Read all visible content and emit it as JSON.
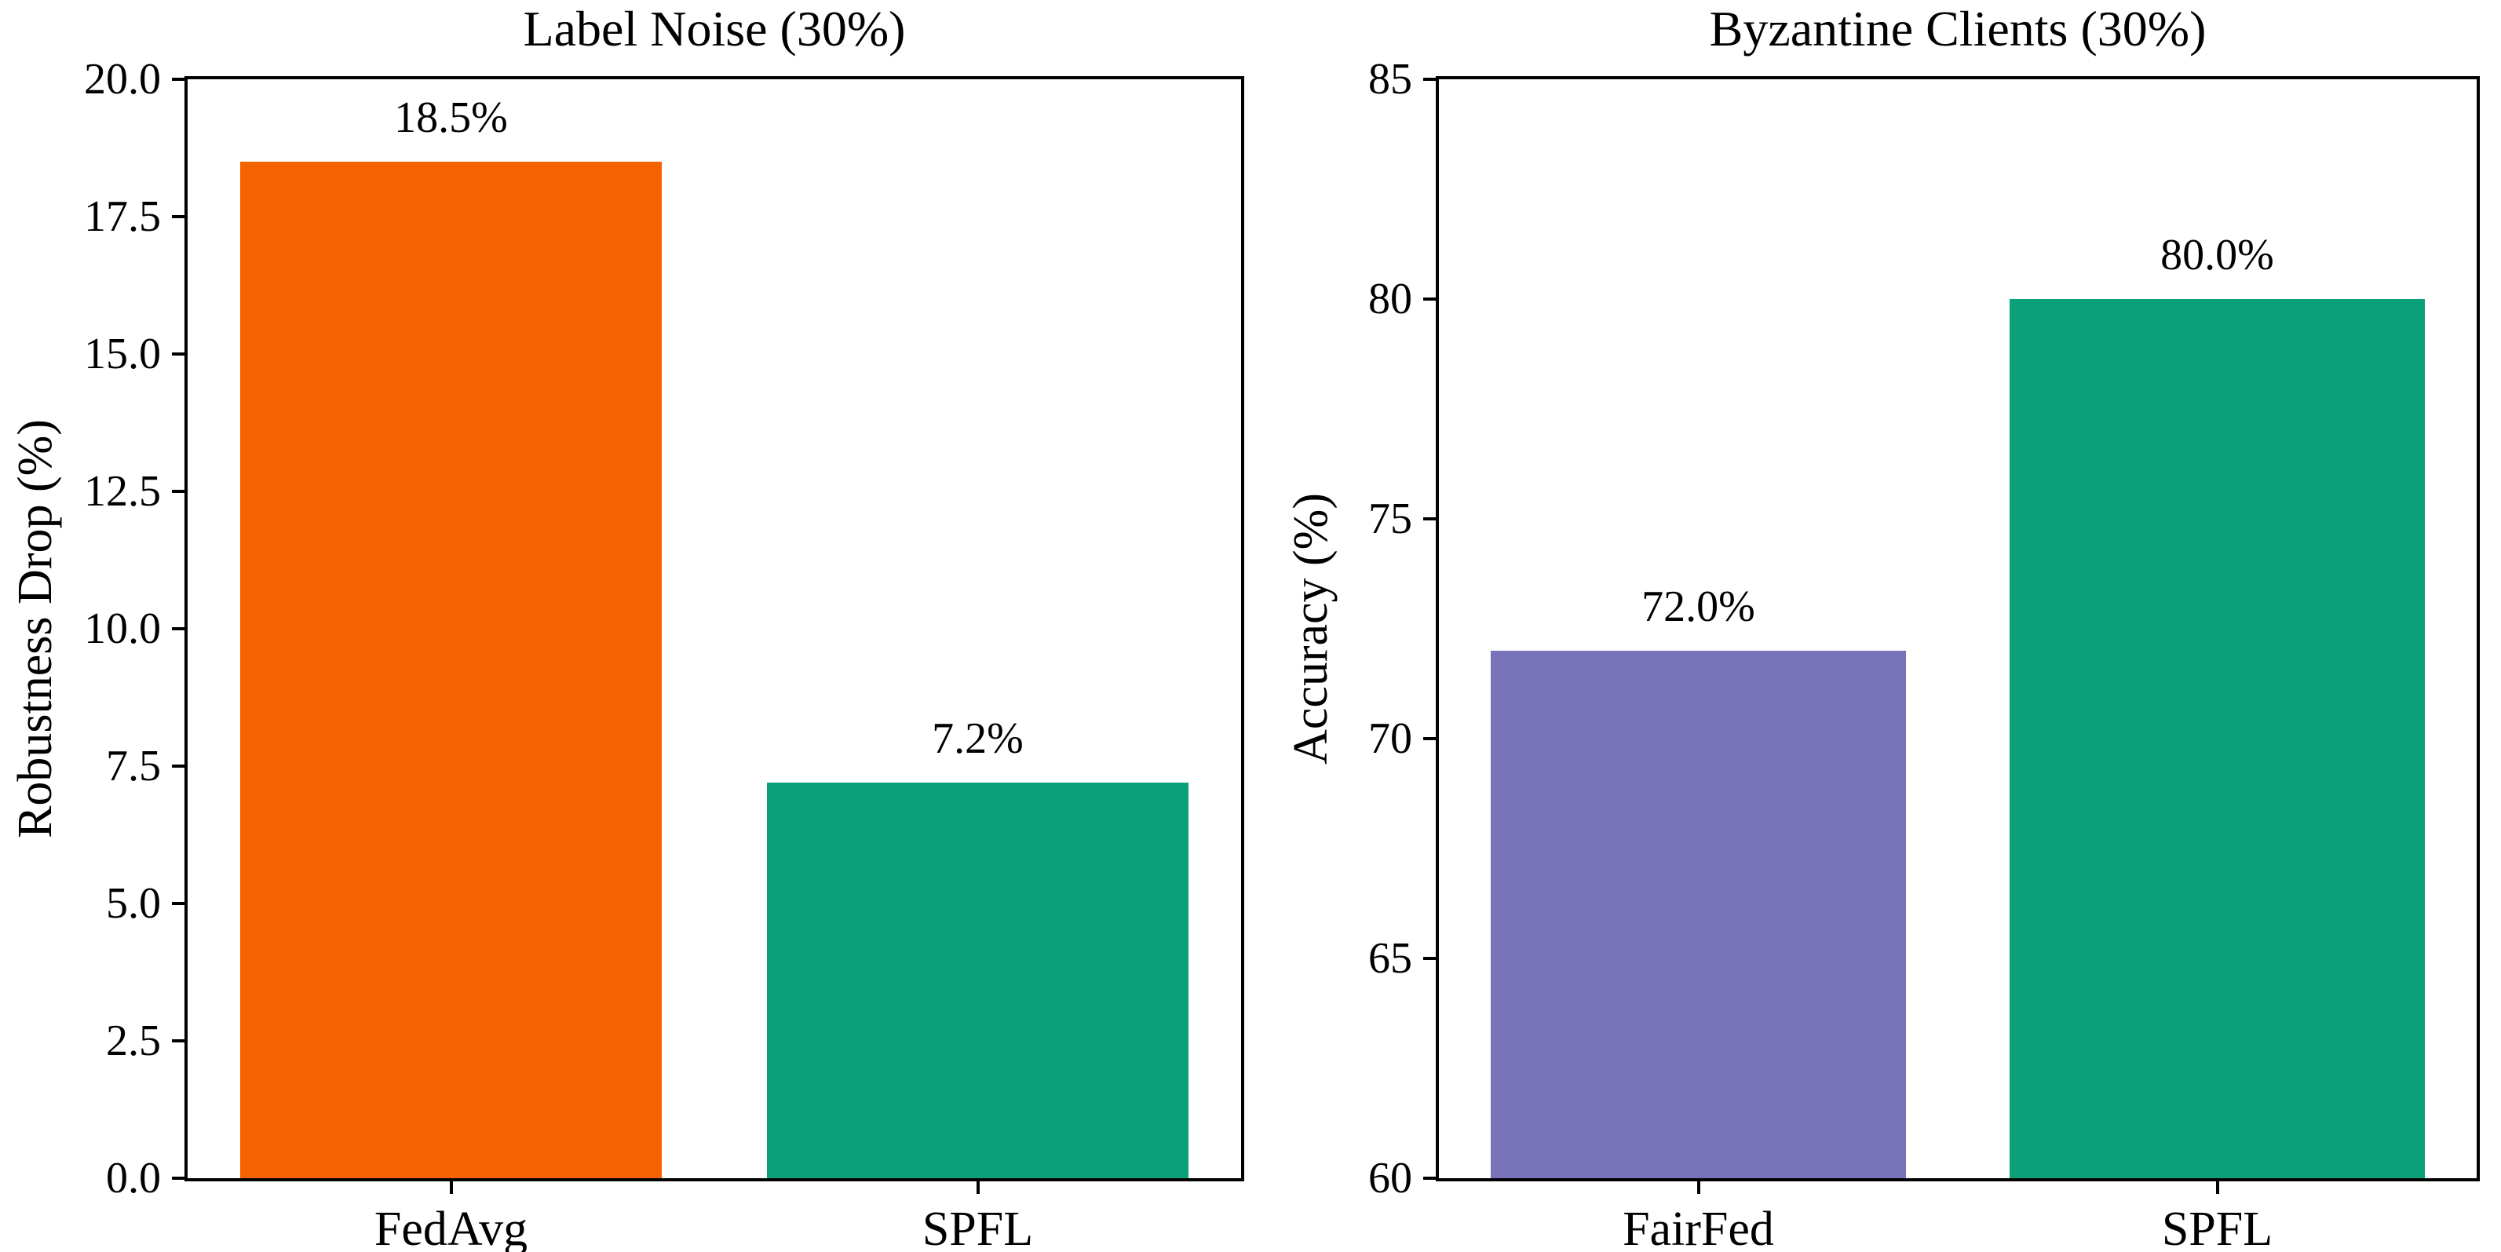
{
  "figure": {
    "background": "#ffffff",
    "text_color": "#000000",
    "spine_color": "#000000"
  },
  "chart_data": [
    {
      "type": "bar",
      "title": "Label Noise (30%)",
      "xlabel": "",
      "ylabel": "Robustness Drop (%)",
      "categories": [
        "FedAvg",
        "SPFL"
      ],
      "values": [
        18.5,
        7.2
      ],
      "value_labels": [
        "18.5%",
        "7.2%"
      ],
      "bar_colors": [
        "#F56200",
        "#0AA079"
      ],
      "ylim": [
        0,
        20
      ],
      "yticks": [
        0,
        2.5,
        5,
        7.5,
        10,
        12.5,
        15,
        17.5,
        20
      ],
      "ytick_labels": [
        "0.0",
        "2.5",
        "5.0",
        "7.5",
        "10.0",
        "12.5",
        "15.0",
        "17.5",
        "20.0"
      ],
      "grid": false,
      "legend": null,
      "bar_width_fraction": 0.8
    },
    {
      "type": "bar",
      "title": "Byzantine Clients (30%)",
      "xlabel": "",
      "ylabel": "Accuracy (%)",
      "categories": [
        "FairFed",
        "SPFL"
      ],
      "values": [
        72.0,
        80.0
      ],
      "value_labels": [
        "72.0%",
        "80.0%"
      ],
      "bar_colors": [
        "#7873B8",
        "#0AA079"
      ],
      "ylim": [
        60,
        85
      ],
      "yticks": [
        60,
        65,
        70,
        75,
        80,
        85
      ],
      "ytick_labels": [
        "60",
        "65",
        "70",
        "75",
        "80",
        "85"
      ],
      "grid": false,
      "legend": null,
      "bar_width_fraction": 0.8
    }
  ]
}
